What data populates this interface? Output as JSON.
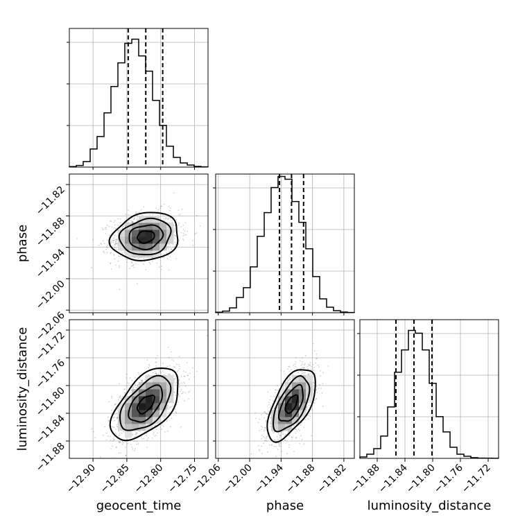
{
  "chart_data": {
    "type": "corner",
    "parameters": [
      {
        "name": "geocent_time",
        "label": "geocent_time",
        "range": [
          -12.935,
          -12.73
        ],
        "median": -12.822,
        "q16": -12.848,
        "q84": -12.797,
        "sigma": 0.025
      },
      {
        "name": "phase",
        "label": "phase",
        "range": [
          -12.065,
          -11.8
        ],
        "median": -11.92,
        "q16": -11.943,
        "q84": -11.897,
        "sigma": 0.023
      },
      {
        "name": "luminosity_distance",
        "label": "luminosity_distance",
        "range": [
          -11.905,
          -11.705
        ],
        "median": -11.827,
        "q16": -11.853,
        "q84": -11.801,
        "sigma": 0.026
      }
    ],
    "ticks": [
      {
        "values": [
          -12.9,
          -12.85,
          -12.8,
          -12.75
        ],
        "labels": [
          "−12.90",
          "−12.85",
          "−12.80",
          "−12.75"
        ]
      },
      {
        "values": [
          -12.06,
          -12.0,
          -11.94,
          -11.88,
          -11.82
        ],
        "labels": [
          "−12.06",
          "−12.00",
          "−11.94",
          "−11.88",
          "−11.82"
        ]
      },
      {
        "values": [
          -11.88,
          -11.84,
          -11.8,
          -11.76,
          -11.72
        ],
        "labels": [
          "−11.88",
          "−11.84",
          "−11.80",
          "−11.76",
          "−11.72"
        ]
      }
    ],
    "histograms": [
      {
        "param": 0,
        "bin_edges": [
          -12.935,
          -12.9247,
          -12.9145,
          -12.9042,
          -12.894,
          -12.8837,
          -12.8735,
          -12.8632,
          -12.853,
          -12.8427,
          -12.8325,
          -12.8222,
          -12.812,
          -12.8017,
          -12.7915,
          -12.7812,
          -12.771,
          -12.7607,
          -12.7505,
          -12.7402,
          -12.73
        ],
        "density": [
          0.004,
          0.012,
          0.04,
          0.13,
          0.22,
          0.39,
          0.58,
          0.75,
          0.89,
          0.92,
          0.8,
          0.69,
          0.48,
          0.3,
          0.15,
          0.07,
          0.03,
          0.015,
          0.005,
          0.002
        ]
      },
      {
        "param": 1,
        "bin_edges": [
          -12.065,
          -12.0518,
          -12.0385,
          -12.0253,
          -12.012,
          -11.9988,
          -11.9855,
          -11.9722,
          -11.959,
          -11.9458,
          -11.9325,
          -11.9192,
          -11.906,
          -11.8927,
          -11.8795,
          -11.8662,
          -11.853,
          -11.8398,
          -11.8265,
          -11.8132,
          -11.8
        ],
        "density": [
          0.004,
          0.012,
          0.035,
          0.11,
          0.18,
          0.33,
          0.55,
          0.72,
          0.9,
          0.98,
          0.96,
          0.8,
          0.65,
          0.46,
          0.26,
          0.1,
          0.04,
          0.015,
          0.005,
          0.002
        ]
      },
      {
        "param": 2,
        "bin_edges": [
          -11.905,
          -11.895,
          -11.885,
          -11.875,
          -11.865,
          -11.855,
          -11.845,
          -11.835,
          -11.825,
          -11.815,
          -11.805,
          -11.795,
          -11.785,
          -11.775,
          -11.765,
          -11.755,
          -11.745,
          -11.735,
          -11.725,
          -11.715,
          -11.705
        ],
        "density": [
          0.01,
          0.03,
          0.07,
          0.16,
          0.37,
          0.62,
          0.78,
          0.92,
          0.9,
          0.78,
          0.54,
          0.3,
          0.19,
          0.08,
          0.03,
          0.015,
          0.005,
          0.002,
          0.001,
          0.0005
        ]
      }
    ],
    "pairs": [
      {
        "x": 0,
        "y": 1,
        "correlation": 0.15
      },
      {
        "x": 0,
        "y": 2,
        "correlation": 0.55
      },
      {
        "x": 1,
        "y": 2,
        "correlation": 0.6
      }
    ],
    "contour_levels_sigma": [
      0.5,
      1.0,
      1.5,
      2.0
    ],
    "grid": true
  }
}
